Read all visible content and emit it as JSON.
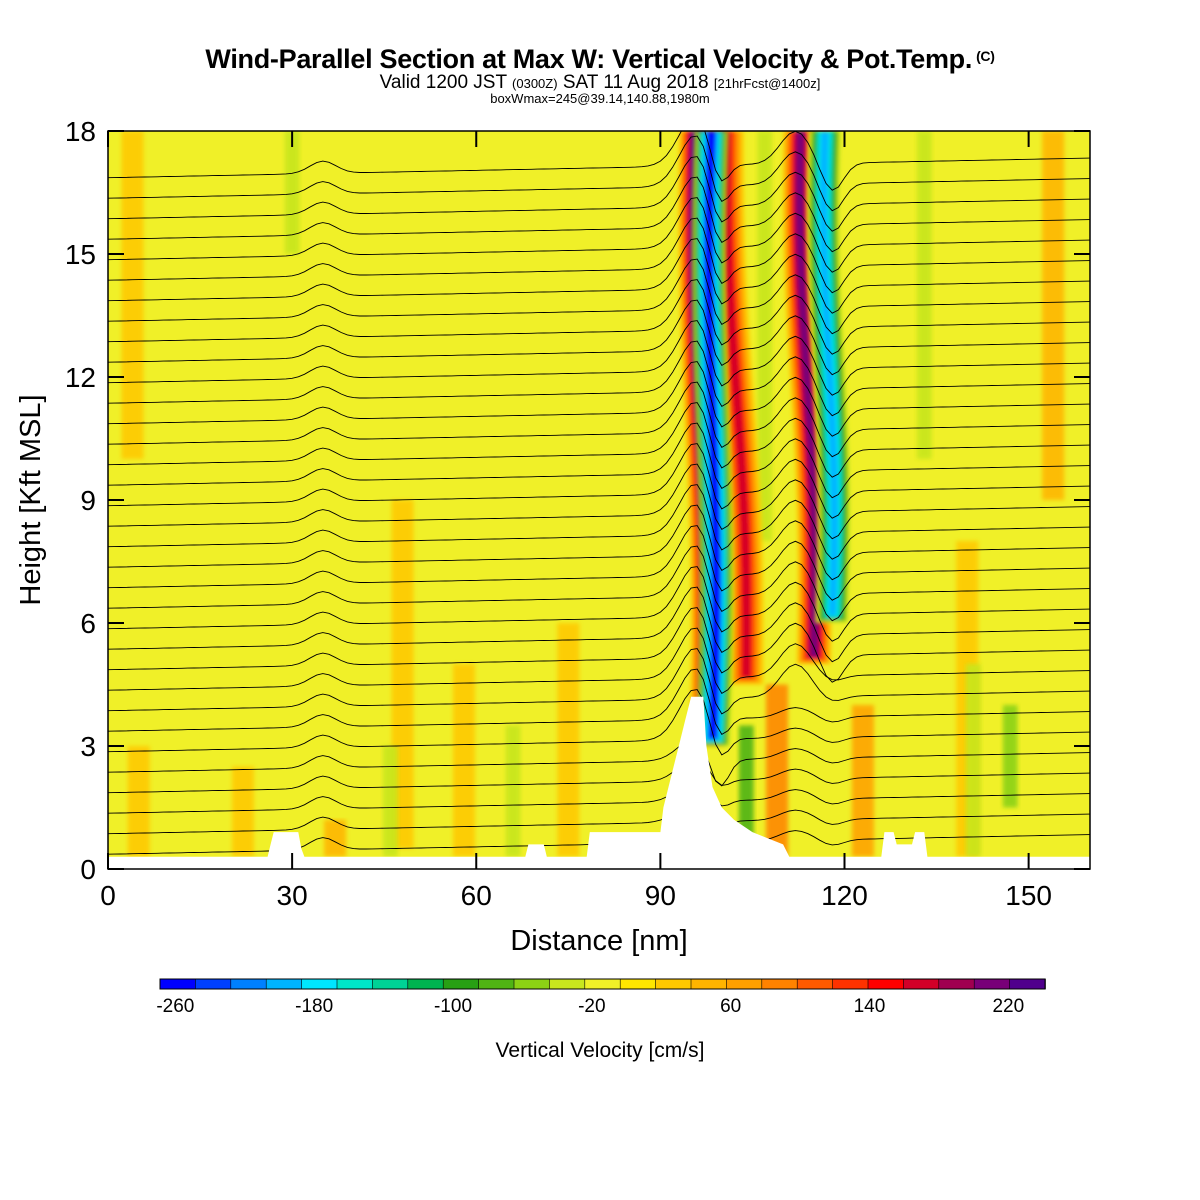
{
  "title": {
    "main": "Wind-Parallel Section at Max W: Vertical Velocity & Pot.Temp.",
    "copyright": "(C)",
    "valid_prefix": "Valid 1200 JST",
    "valid_utc": "(0300Z)",
    "valid_date": "SAT 11 Aug 2018",
    "forecast": "[21hrFcst@1400z]",
    "box_info": "boxWmax=245@39.14,140.88,1980m"
  },
  "chart_data": {
    "type": "heatmap",
    "xlabel": "Distance [nm]",
    "ylabel": "Height [Kft MSL]",
    "xlim": [
      0,
      160
    ],
    "ylim": [
      0,
      18
    ],
    "x_ticks": [
      0,
      30,
      60,
      90,
      120,
      150
    ],
    "y_ticks": [
      0,
      3,
      6,
      9,
      12,
      15,
      18
    ],
    "colorbar": {
      "label": "Vertical Velocity [cm/s]",
      "ticks": [
        -260,
        -180,
        -100,
        -20,
        60,
        140,
        220
      ],
      "range": [
        -270,
        240
      ],
      "colors": [
        "#0000ff",
        "#0040ff",
        "#0080ff",
        "#00b4ff",
        "#00e6ff",
        "#00e6c8",
        "#00d296",
        "#00b450",
        "#28a014",
        "#50b414",
        "#8cd214",
        "#c8e61e",
        "#f0f028",
        "#ffe600",
        "#ffc800",
        "#ffb400",
        "#ffa000",
        "#ff8200",
        "#ff5a00",
        "#ff3200",
        "#ff0000",
        "#d20028",
        "#a00050",
        "#780078",
        "#50008c"
      ]
    },
    "terrain": [
      [
        0,
        0.3
      ],
      [
        26,
        0.3
      ],
      [
        26.5,
        0.6
      ],
      [
        27,
        0.9
      ],
      [
        31,
        0.9
      ],
      [
        31.5,
        0.5
      ],
      [
        32,
        0.3
      ],
      [
        68,
        0.3
      ],
      [
        68.5,
        0.6
      ],
      [
        71,
        0.6
      ],
      [
        71.5,
        0.3
      ],
      [
        78,
        0.3
      ],
      [
        78.5,
        0.9
      ],
      [
        90,
        0.9
      ],
      [
        90.5,
        1.5
      ],
      [
        92,
        2.4
      ],
      [
        93,
        3.0
      ],
      [
        94,
        3.6
      ],
      [
        95,
        4.2
      ],
      [
        97,
        4.2
      ],
      [
        97.5,
        3.0
      ],
      [
        98.5,
        2.0
      ],
      [
        100,
        1.5
      ],
      [
        102,
        1.2
      ],
      [
        105,
        0.9
      ],
      [
        110,
        0.6
      ],
      [
        111,
        0.3
      ],
      [
        126,
        0.3
      ],
      [
        126.5,
        0.9
      ],
      [
        128,
        0.9
      ],
      [
        128.5,
        0.6
      ],
      [
        131,
        0.6
      ],
      [
        131.5,
        0.9
      ],
      [
        133,
        0.9
      ],
      [
        133.5,
        0.3
      ],
      [
        160,
        0.3
      ]
    ],
    "updraft_bands": [
      {
        "name": "lee-updraft-primary",
        "bottom": [
          97.5,
          3.0
        ],
        "top": [
          96,
          18
        ],
        "w_max": 245
      },
      {
        "name": "lee-updraft-secondary",
        "bottom": [
          104,
          4.5
        ],
        "top": [
          101,
          18
        ],
        "w_max": 160
      },
      {
        "name": "lee-updraft-third",
        "bottom": [
          115,
          5.0
        ],
        "top": [
          113,
          18
        ],
        "w_max": 200
      }
    ],
    "downdraft_bands": [
      {
        "name": "lee-downdraft-primary",
        "bottom": [
          98.5,
          3.0
        ],
        "top": [
          98.5,
          18
        ],
        "w_min": -260
      },
      {
        "name": "lee-downdraft-secondary",
        "bottom": [
          118,
          6.0
        ],
        "top": [
          117,
          18
        ],
        "w_min": -200
      }
    ],
    "isentropes": {
      "count": 34,
      "base_kft": 0.6,
      "spacing_kft": 0.5
    }
  }
}
